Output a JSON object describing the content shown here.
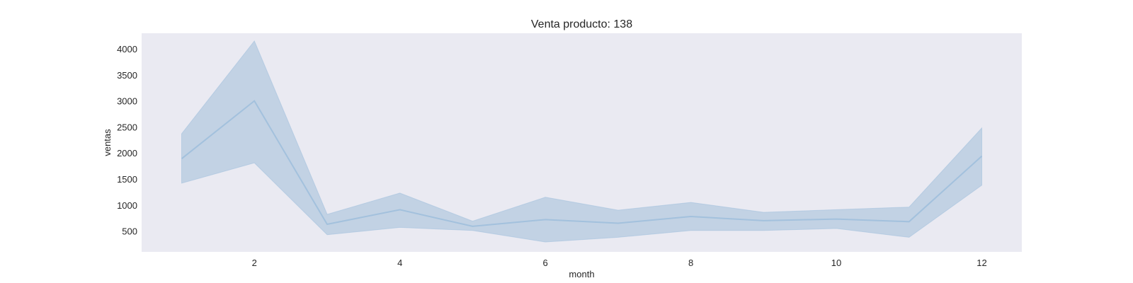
{
  "chart_data": {
    "type": "line",
    "title": "Venta producto: 138",
    "xlabel": "month",
    "ylabel": "ventas",
    "xlim": [
      0.45,
      12.55
    ],
    "ylim": [
      100,
      4300
    ],
    "xticks": [
      2,
      4,
      6,
      8,
      10,
      12
    ],
    "yticks": [
      500,
      1000,
      1500,
      2000,
      2500,
      3000,
      3500,
      4000
    ],
    "grid": false,
    "legend": "none",
    "series": [
      {
        "x": [
          1,
          2,
          3,
          4,
          5,
          6,
          7,
          8,
          9,
          10,
          11,
          12
        ],
        "values": [
          1890,
          3000,
          630,
          910,
          590,
          720,
          650,
          780,
          700,
          730,
          680,
          1940
        ],
        "ci_lower": [
          1420,
          1810,
          430,
          570,
          510,
          290,
          380,
          510,
          510,
          550,
          380,
          1380
        ],
        "ci_upper": [
          2370,
          4150,
          820,
          1230,
          690,
          1150,
          900,
          1050,
          860,
          910,
          960,
          2480
        ]
      }
    ],
    "colors": {
      "background": "#eaeaf2",
      "line": "#a3c1dd",
      "band": "#c2d2e4"
    }
  }
}
